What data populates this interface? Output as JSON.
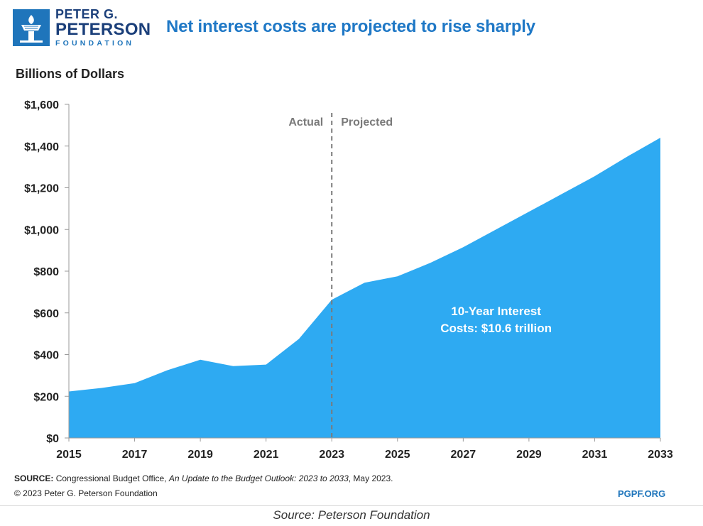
{
  "header": {
    "logo_line1": "PETER G.",
    "logo_line2": "PETERSON",
    "logo_line3": "FOUNDATION",
    "title": "Net interest costs are projected to rise sharply"
  },
  "footer": {
    "source_label": "SOURCE:",
    "source_text": "Congressional Budget Office, ",
    "source_italic": "An Update to the Budget Outlook: 2023 to 2033",
    "source_end": ", May 2023.",
    "copyright": "© 2023 Peter G. Peterson Foundation",
    "site": "PGPF.ORG"
  },
  "caption": "Source: Peterson Foundation",
  "colors": {
    "area": "#2eaaf2",
    "brand_blue": "#1f75bb",
    "title_blue": "#1f78c6"
  },
  "chart_data": {
    "type": "area",
    "title": "Net interest costs are projected to rise sharply",
    "ylabel": "Billions of Dollars",
    "xlabel": "",
    "x": [
      2015,
      2016,
      2017,
      2018,
      2019,
      2020,
      2021,
      2022,
      2023,
      2024,
      2025,
      2026,
      2027,
      2028,
      2029,
      2030,
      2031,
      2032,
      2033
    ],
    "series": [
      {
        "values": [
          223,
          240,
          263,
          325,
          375,
          345,
          352,
          475,
          663,
          745,
          775,
          840,
          915,
          1000,
          1085,
          1170,
          1255,
          1350,
          1440
        ]
      }
    ],
    "ylim": [
      0,
      1600
    ],
    "xlim": [
      2015,
      2033
    ],
    "yticks": [
      0,
      200,
      400,
      600,
      800,
      1000,
      1200,
      1400,
      1600
    ],
    "ytick_labels": [
      "$0",
      "$200",
      "$400",
      "$600",
      "$800",
      "$1,000",
      "$1,200",
      "$1,400",
      "$1,600"
    ],
    "xticks": [
      2015,
      2017,
      2019,
      2021,
      2023,
      2025,
      2027,
      2029,
      2031,
      2033
    ],
    "divider_x": 2023,
    "divider_labels": {
      "left": "Actual",
      "right": "Projected"
    },
    "annotation": {
      "line1": "10-Year Interest",
      "line2": "Costs: $10.6 trillion",
      "x": 2028,
      "y": 555
    },
    "grid": false,
    "legend": "none"
  }
}
